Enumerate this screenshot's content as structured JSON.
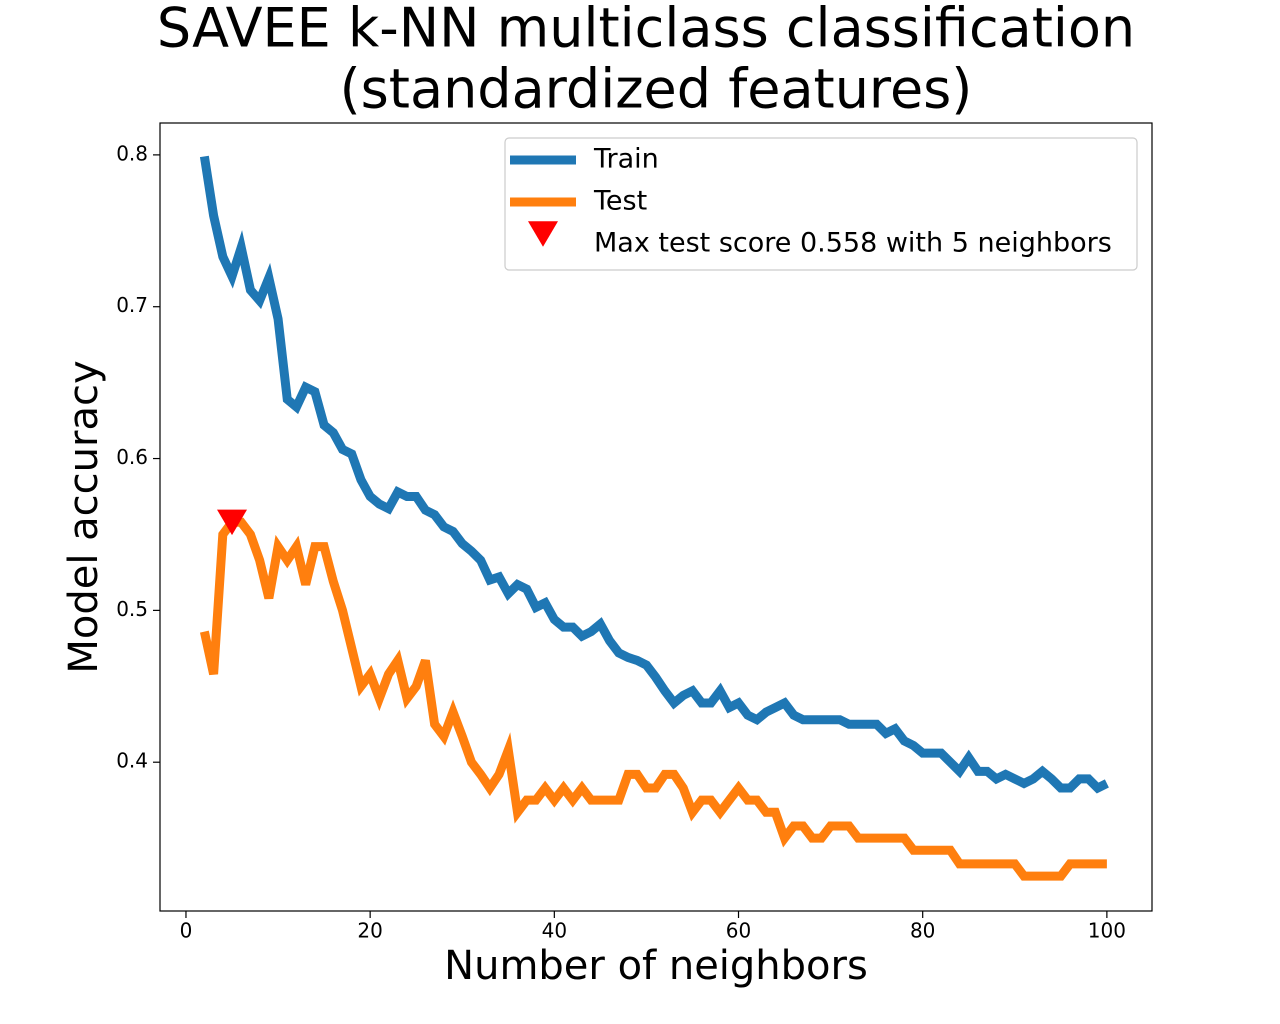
{
  "chart_data": {
    "type": "line",
    "title": [
      "SAVEE k-NN multiclass classification",
      "(standardized features)"
    ],
    "x_label": "Number of neighbors",
    "y_label": "Model accuracy",
    "x": [
      2,
      3,
      4,
      5,
      6,
      7,
      8,
      9,
      10,
      11,
      12,
      13,
      14,
      15,
      16,
      17,
      18,
      19,
      20,
      21,
      22,
      23,
      24,
      25,
      26,
      27,
      28,
      29,
      30,
      31,
      32,
      33,
      34,
      35,
      36,
      37,
      38,
      39,
      40,
      41,
      42,
      43,
      44,
      45,
      46,
      47,
      48,
      49,
      50,
      51,
      52,
      53,
      54,
      55,
      56,
      57,
      58,
      59,
      60,
      61,
      62,
      63,
      64,
      65,
      66,
      67,
      68,
      69,
      70,
      71,
      72,
      73,
      74,
      75,
      76,
      77,
      78,
      79,
      80,
      81,
      82,
      83,
      84,
      85,
      86,
      87,
      88,
      89,
      90,
      91,
      92,
      93,
      94,
      95,
      96,
      97,
      98,
      99,
      100
    ],
    "series": [
      {
        "name": "Train",
        "color": "#1f77b4",
        "values": [
          0.799,
          0.76,
          0.733,
          0.72,
          0.739,
          0.711,
          0.704,
          0.719,
          0.692,
          0.639,
          0.634,
          0.647,
          0.644,
          0.622,
          0.617,
          0.606,
          0.603,
          0.586,
          0.575,
          0.57,
          0.567,
          0.578,
          0.575,
          0.575,
          0.566,
          0.563,
          0.555,
          0.552,
          0.544,
          0.539,
          0.533,
          0.52,
          0.522,
          0.511,
          0.517,
          0.514,
          0.502,
          0.505,
          0.494,
          0.489,
          0.489,
          0.483,
          0.486,
          0.491,
          0.48,
          0.472,
          0.469,
          0.467,
          0.464,
          0.456,
          0.447,
          0.439,
          0.444,
          0.447,
          0.439,
          0.439,
          0.447,
          0.436,
          0.439,
          0.431,
          0.428,
          0.433,
          0.436,
          0.439,
          0.431,
          0.428,
          0.428,
          0.428,
          0.428,
          0.428,
          0.425,
          0.425,
          0.425,
          0.425,
          0.419,
          0.422,
          0.414,
          0.411,
          0.406,
          0.406,
          0.406,
          0.4,
          0.394,
          0.403,
          0.394,
          0.394,
          0.389,
          0.392,
          0.389,
          0.386,
          0.389,
          0.394,
          0.389,
          0.383,
          0.383,
          0.389,
          0.389,
          0.383,
          0.386
        ]
      },
      {
        "name": "Test",
        "color": "#ff7f0e",
        "values": [
          0.486,
          0.458,
          0.55,
          0.558,
          0.558,
          0.55,
          0.533,
          0.508,
          0.542,
          0.533,
          0.542,
          0.517,
          0.542,
          0.542,
          0.519,
          0.5,
          0.475,
          0.45,
          0.458,
          0.442,
          0.458,
          0.467,
          0.442,
          0.45,
          0.467,
          0.425,
          0.417,
          0.433,
          0.417,
          0.4,
          0.392,
          0.383,
          0.392,
          0.408,
          0.367,
          0.375,
          0.375,
          0.383,
          0.375,
          0.383,
          0.375,
          0.383,
          0.375,
          0.375,
          0.375,
          0.375,
          0.392,
          0.392,
          0.383,
          0.383,
          0.392,
          0.392,
          0.383,
          0.367,
          0.375,
          0.375,
          0.367,
          0.375,
          0.383,
          0.375,
          0.375,
          0.367,
          0.367,
          0.35,
          0.358,
          0.358,
          0.35,
          0.35,
          0.358,
          0.358,
          0.358,
          0.35,
          0.35,
          0.35,
          0.35,
          0.35,
          0.35,
          0.342,
          0.342,
          0.342,
          0.342,
          0.342,
          0.333,
          0.333,
          0.333,
          0.333,
          0.333,
          0.333,
          0.333,
          0.325,
          0.325,
          0.325,
          0.325,
          0.325,
          0.333,
          0.333,
          0.333,
          0.333,
          0.333
        ]
      },
      {
        "name": "Max test score 0.558 with 5 neighbors",
        "color": "#ff0000",
        "marker": "triangle-down",
        "x": [
          5
        ],
        "values": [
          0.558
        ]
      }
    ],
    "xlim": [
      -2.82,
      104.9
    ],
    "ylim": [
      0.302,
      0.821
    ],
    "xticks": [
      0,
      20,
      40,
      60,
      80,
      100
    ],
    "yticks": [
      0.4,
      0.5,
      0.6,
      0.7,
      0.8
    ],
    "grid": false,
    "legend": "upper right"
  }
}
